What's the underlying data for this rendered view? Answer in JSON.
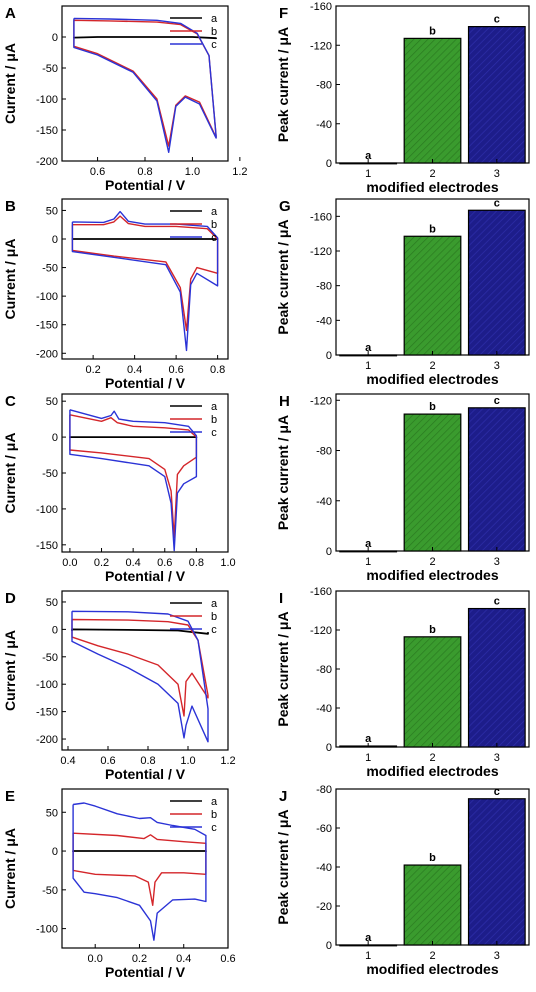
{
  "colors": {
    "series": [
      "#000000",
      "#d4262a",
      "#2b33d6"
    ],
    "bars": [
      "#ffffff",
      "#3a9b2e",
      "#1d1d8a"
    ]
  },
  "chart_data": [
    {
      "panel": "A",
      "type": "line",
      "xlabel": "Potential / V",
      "ylabel": "Current / μA",
      "xlim": [
        0.45,
        1.15
      ],
      "ylim": [
        -200,
        50
      ],
      "xticks": [
        0.6,
        0.8,
        1.0,
        1.2
      ],
      "xtick_labels": [
        "0.6",
        "0.8",
        "1.0",
        "1.2"
      ],
      "yticks": [
        -200,
        -150,
        -100,
        -50,
        0
      ],
      "legend": "top-right",
      "legend_labels": [
        "a",
        "b",
        "c"
      ],
      "series": [
        {
          "name": "a",
          "x": [
            0.5,
            0.5,
            0.6,
            0.8,
            1.0,
            1.1,
            1.1
          ],
          "y": [
            0,
            -1,
            0,
            0,
            0,
            -2,
            -1
          ]
        },
        {
          "name": "b",
          "x": [
            0.5,
            0.65,
            0.85,
            0.95,
            1.02,
            1.07,
            1.1,
            1.1,
            1.03,
            0.97,
            0.93,
            0.9,
            0.85,
            0.75,
            0.6,
            0.5,
            0.5
          ],
          "y": [
            27,
            26,
            24,
            20,
            5,
            -30,
            -160,
            -162,
            -105,
            -95,
            -110,
            -176,
            -100,
            -55,
            -27,
            -15,
            27
          ]
        },
        {
          "name": "c",
          "x": [
            0.5,
            0.65,
            0.85,
            0.95,
            1.02,
            1.07,
            1.1,
            1.1,
            1.03,
            0.97,
            0.93,
            0.9,
            0.85,
            0.75,
            0.6,
            0.5,
            0.5
          ],
          "y": [
            30,
            29,
            27,
            22,
            6,
            -30,
            -160,
            -163,
            -108,
            -97,
            -112,
            -186,
            -103,
            -57,
            -29,
            -17,
            30
          ]
        }
      ]
    },
    {
      "panel": "B",
      "type": "line",
      "xlabel": "Potential / V",
      "ylabel": "Current / μA",
      "xlim": [
        0.05,
        0.85
      ],
      "ylim": [
        -210,
        70
      ],
      "xticks": [
        0.2,
        0.4,
        0.6,
        0.8
      ],
      "xtick_labels": [
        "0.2",
        "0.4",
        "0.6",
        "0.8"
      ],
      "yticks": [
        -200,
        -150,
        -100,
        -50,
        0,
        50
      ],
      "legend": "top-right",
      "legend_labels": [
        "a",
        "b",
        "c"
      ],
      "series": [
        {
          "name": "a",
          "x": [
            0.1,
            0.1,
            0.4,
            0.8,
            0.8
          ],
          "y": [
            -1,
            0,
            0,
            0,
            -1
          ]
        },
        {
          "name": "b",
          "x": [
            0.1,
            0.25,
            0.3,
            0.33,
            0.37,
            0.45,
            0.6,
            0.75,
            0.8,
            0.8,
            0.7,
            0.67,
            0.65,
            0.62,
            0.55,
            0.3,
            0.1,
            0.1
          ],
          "y": [
            25,
            25,
            30,
            40,
            27,
            22,
            22,
            18,
            0,
            -60,
            -50,
            -70,
            -160,
            -85,
            -40,
            -30,
            -20,
            25
          ]
        },
        {
          "name": "c",
          "x": [
            0.1,
            0.25,
            0.3,
            0.33,
            0.37,
            0.45,
            0.6,
            0.75,
            0.8,
            0.8,
            0.7,
            0.67,
            0.65,
            0.62,
            0.55,
            0.3,
            0.1,
            0.1
          ],
          "y": [
            30,
            29,
            35,
            48,
            31,
            26,
            26,
            22,
            2,
            -82,
            -60,
            -80,
            -195,
            -93,
            -45,
            -32,
            -22,
            30
          ]
        }
      ]
    },
    {
      "panel": "C",
      "type": "line",
      "xlabel": "Potential / V",
      "ylabel": "Current / μA",
      "xlim": [
        -0.05,
        1.0
      ],
      "ylim": [
        -160,
        60
      ],
      "xticks": [
        0.0,
        0.2,
        0.4,
        0.6,
        0.8,
        1.0
      ],
      "xtick_labels": [
        "0.0",
        "0.2",
        "0.4",
        "0.6",
        "0.8",
        "1.0"
      ],
      "yticks": [
        -150,
        -100,
        -50,
        0,
        50
      ],
      "legend": "top-right",
      "legend_labels": [
        "a",
        "b",
        "c"
      ],
      "series": [
        {
          "name": "a",
          "x": [
            0.0,
            0.0,
            0.4,
            0.8,
            0.8
          ],
          "y": [
            -1,
            0,
            0,
            0,
            -1
          ]
        },
        {
          "name": "b",
          "x": [
            0.0,
            0.2,
            0.26,
            0.3,
            0.4,
            0.6,
            0.75,
            0.8,
            0.8,
            0.72,
            0.68,
            0.66,
            0.64,
            0.6,
            0.5,
            0.2,
            0.0,
            0.0
          ],
          "y": [
            31,
            22,
            27,
            20,
            15,
            13,
            10,
            0,
            -28,
            -40,
            -52,
            -140,
            -75,
            -45,
            -30,
            -22,
            -18,
            31
          ]
        },
        {
          "name": "c",
          "x": [
            0.0,
            0.2,
            0.26,
            0.28,
            0.31,
            0.4,
            0.6,
            0.75,
            0.8,
            0.8,
            0.72,
            0.68,
            0.66,
            0.64,
            0.6,
            0.5,
            0.2,
            0.0,
            0.0
          ],
          "y": [
            38,
            26,
            30,
            36,
            25,
            22,
            20,
            15,
            2,
            -55,
            -65,
            -78,
            -158,
            -92,
            -55,
            -40,
            -30,
            -24,
            38
          ]
        }
      ]
    },
    {
      "panel": "D",
      "type": "line",
      "xlabel": "Potential / V",
      "ylabel": "Current / μA",
      "xlim": [
        0.37,
        1.2
      ],
      "ylim": [
        -220,
        70
      ],
      "xticks": [
        0.4,
        0.6,
        0.8,
        1.0,
        1.2
      ],
      "xtick_labels": [
        "0.4",
        "0.6",
        "0.8",
        "1.0",
        "1.2"
      ],
      "yticks": [
        -200,
        -150,
        -100,
        -50,
        0,
        50
      ],
      "legend": "top-right",
      "legend_labels": [
        "a",
        "b",
        "c"
      ],
      "series": [
        {
          "name": "a",
          "x": [
            0.42,
            0.42,
            0.7,
            0.95,
            1.1,
            1.1
          ],
          "y": [
            -3,
            0,
            -1,
            -2,
            -8,
            -5
          ]
        },
        {
          "name": "b",
          "x": [
            0.42,
            0.7,
            0.9,
            1.0,
            1.05,
            1.1,
            1.1,
            1.02,
            0.99,
            0.98,
            0.95,
            0.85,
            0.7,
            0.55,
            0.42,
            0.42
          ],
          "y": [
            18,
            17,
            14,
            8,
            -20,
            -120,
            -125,
            -80,
            -95,
            -158,
            -100,
            -65,
            -45,
            -30,
            -14,
            18
          ]
        },
        {
          "name": "c",
          "x": [
            0.42,
            0.7,
            0.9,
            1.0,
            1.05,
            1.1,
            1.1,
            1.02,
            0.99,
            0.98,
            0.95,
            0.85,
            0.7,
            0.55,
            0.42,
            0.42
          ],
          "y": [
            33,
            32,
            28,
            15,
            -20,
            -145,
            -205,
            -140,
            -175,
            -198,
            -135,
            -100,
            -70,
            -45,
            -22,
            33
          ]
        }
      ]
    },
    {
      "panel": "E",
      "type": "line",
      "xlabel": "Potential / V",
      "ylabel": "Current / μA",
      "xlim": [
        -0.15,
        0.6
      ],
      "ylim": [
        -125,
        80
      ],
      "xticks": [
        0.0,
        0.2,
        0.4,
        0.6
      ],
      "xtick_labels": [
        "0.0",
        "0.2",
        "0.4",
        "0.6"
      ],
      "yticks": [
        -100,
        -50,
        0,
        50
      ],
      "legend": "top-right",
      "legend_labels": [
        "a",
        "b",
        "c"
      ],
      "series": [
        {
          "name": "a",
          "x": [
            -0.1,
            -0.1,
            0.2,
            0.5,
            0.5
          ],
          "y": [
            -1,
            0,
            0,
            0,
            -1
          ]
        },
        {
          "name": "b",
          "x": [
            -0.1,
            0.1,
            0.22,
            0.25,
            0.28,
            0.4,
            0.5,
            0.5,
            0.4,
            0.3,
            0.27,
            0.26,
            0.24,
            0.18,
            0.0,
            -0.1,
            -0.1
          ],
          "y": [
            23,
            20,
            16,
            21,
            15,
            12,
            10,
            -30,
            -28,
            -28,
            -40,
            -70,
            -40,
            -32,
            -30,
            -25,
            23
          ]
        },
        {
          "name": "c",
          "x": [
            -0.1,
            -0.05,
            0.0,
            0.1,
            0.2,
            0.25,
            0.28,
            0.35,
            0.45,
            0.5,
            0.5,
            0.45,
            0.35,
            0.28,
            0.265,
            0.25,
            0.2,
            0.1,
            0.0,
            -0.05,
            -0.1,
            -0.1
          ],
          "y": [
            60,
            62,
            58,
            48,
            42,
            43,
            37,
            33,
            28,
            20,
            -65,
            -62,
            -63,
            -80,
            -115,
            -90,
            -70,
            -60,
            -55,
            -53,
            -35,
            60
          ]
        }
      ]
    },
    {
      "panel": "F",
      "type": "bar",
      "xlabel": "modified electrodes",
      "ylabel": "Peak current / μA",
      "categories": [
        "1",
        "2",
        "3"
      ],
      "bar_labels": [
        "a",
        "b",
        "c"
      ],
      "values": [
        0,
        127,
        139
      ],
      "ylim": [
        0,
        160
      ],
      "yticks": [
        0,
        40,
        80,
        120,
        160
      ],
      "ytick_labels": [
        "0",
        "-40",
        "-80",
        "-120",
        "-160"
      ]
    },
    {
      "panel": "G",
      "type": "bar",
      "xlabel": "modified electrodes",
      "ylabel": "Peak current / μA",
      "categories": [
        "1",
        "2",
        "3"
      ],
      "bar_labels": [
        "a",
        "b",
        "c"
      ],
      "values": [
        0,
        137,
        167
      ],
      "ylim": [
        0,
        180
      ],
      "yticks": [
        0,
        40,
        80,
        120,
        160
      ],
      "ytick_labels": [
        "0",
        "-40",
        "-80",
        "-120",
        "-160"
      ]
    },
    {
      "panel": "H",
      "type": "bar",
      "xlabel": "modified electrodes",
      "ylabel": "Peak current / μA",
      "categories": [
        "1",
        "2",
        "3"
      ],
      "bar_labels": [
        "a",
        "b",
        "c"
      ],
      "values": [
        0,
        109,
        114
      ],
      "ylim": [
        0,
        125
      ],
      "yticks": [
        0,
        40,
        80,
        120
      ],
      "ytick_labels": [
        "0",
        "-40",
        "-80",
        "-120"
      ]
    },
    {
      "panel": "I",
      "type": "bar",
      "xlabel": "modified electrodes",
      "ylabel": "Peak current / μA",
      "categories": [
        "1",
        "2",
        "3"
      ],
      "bar_labels": [
        "a",
        "b",
        "c"
      ],
      "values": [
        1,
        113,
        142
      ],
      "ylim": [
        0,
        160
      ],
      "yticks": [
        0,
        40,
        80,
        120,
        160
      ],
      "ytick_labels": [
        "0",
        "-40",
        "-80",
        "-120",
        "-160"
      ]
    },
    {
      "panel": "J",
      "type": "bar",
      "xlabel": "modified electrodes",
      "ylabel": "Peak current / μA",
      "categories": [
        "1",
        "2",
        "3"
      ],
      "bar_labels": [
        "a",
        "b",
        "c"
      ],
      "values": [
        0,
        41,
        75
      ],
      "ylim": [
        0,
        80
      ],
      "yticks": [
        0,
        20,
        40,
        60,
        80
      ],
      "ytick_labels": [
        "0",
        "-20",
        "-40",
        "-60",
        "-80"
      ]
    }
  ]
}
